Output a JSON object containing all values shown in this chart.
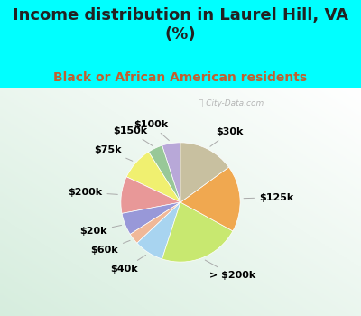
{
  "title": "Income distribution in Laurel Hill, VA\n(%)",
  "subtitle": "Black or African American residents",
  "bg_cyan": "#00FFFF",
  "bg_chart_gradient_left": "#d8ede4",
  "bg_chart_gradient_right": "#e8f8f0",
  "labels": [
    "$100k",
    "$150k",
    "$75k",
    "$200k",
    "$20k",
    "$60k",
    "$40k",
    "> $200k",
    "$125k",
    "$30k"
  ],
  "sizes": [
    5,
    4,
    9,
    10,
    6,
    3,
    8,
    22,
    18,
    15
  ],
  "colors": [
    "#b8a8d8",
    "#98c898",
    "#f0f070",
    "#e89898",
    "#9898d8",
    "#f0b898",
    "#a8d4f0",
    "#c8e870",
    "#f0a850",
    "#c8c0a0"
  ],
  "startangle": 90,
  "label_fontsize": 8,
  "title_fontsize": 13,
  "subtitle_fontsize": 10,
  "title_color": "#222222",
  "subtitle_color": "#c06030",
  "watermark": "ⓘ City-Data.com"
}
